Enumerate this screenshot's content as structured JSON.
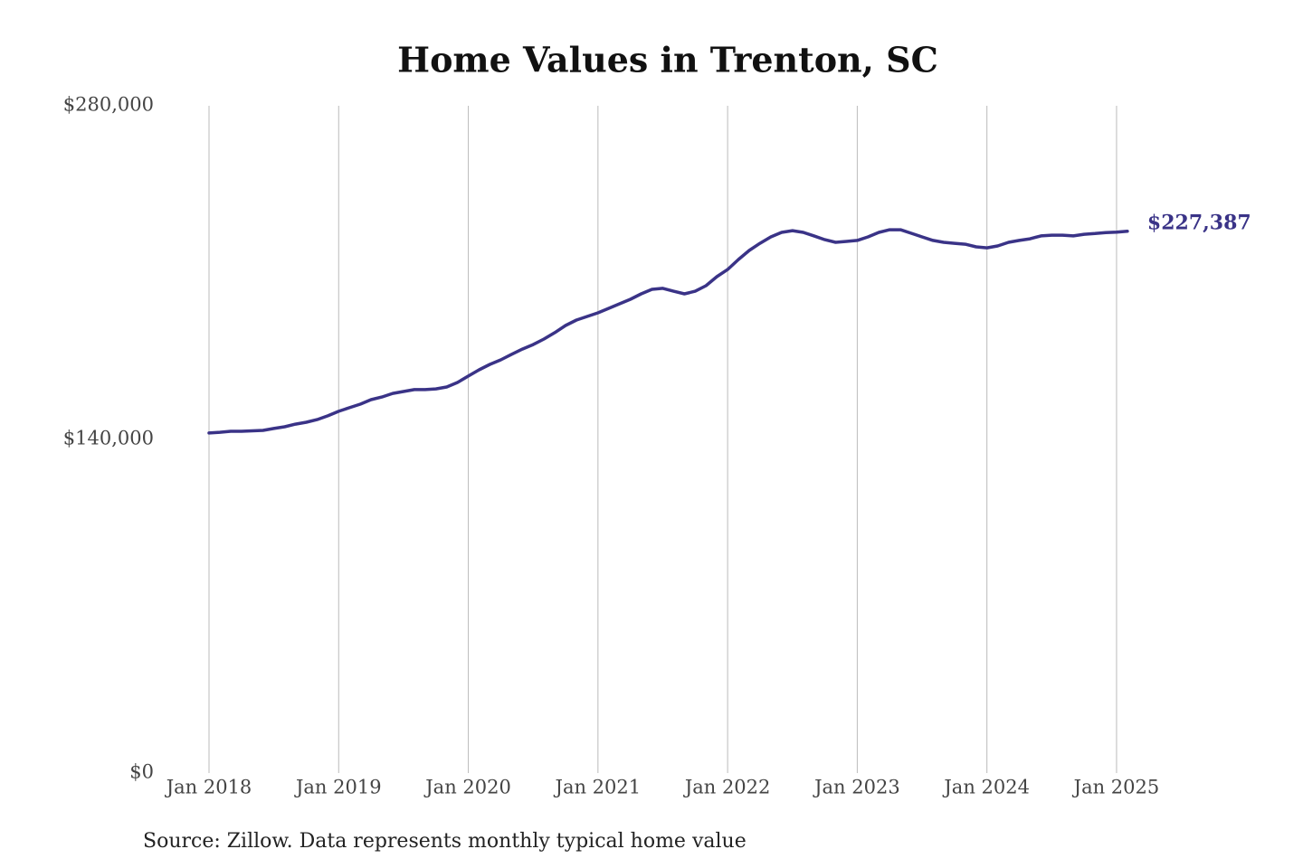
{
  "chart_data": {
    "type": "line",
    "title": "Home Values in Trenton, SC",
    "source": "Source: Zillow. Data represents monthly typical home value",
    "color": "#3a3387",
    "x": [
      "2018-01",
      "2018-02",
      "2018-03",
      "2018-04",
      "2018-05",
      "2018-06",
      "2018-07",
      "2018-08",
      "2018-09",
      "2018-10",
      "2018-11",
      "2018-12",
      "2019-01",
      "2019-02",
      "2019-03",
      "2019-04",
      "2019-05",
      "2019-06",
      "2019-07",
      "2019-08",
      "2019-09",
      "2019-10",
      "2019-11",
      "2019-12",
      "2020-01",
      "2020-02",
      "2020-03",
      "2020-04",
      "2020-05",
      "2020-06",
      "2020-07",
      "2020-08",
      "2020-09",
      "2020-10",
      "2020-11",
      "2020-12",
      "2021-01",
      "2021-02",
      "2021-03",
      "2021-04",
      "2021-05",
      "2021-06",
      "2021-07",
      "2021-08",
      "2021-09",
      "2021-10",
      "2021-11",
      "2021-12",
      "2022-01",
      "2022-02",
      "2022-03",
      "2022-04",
      "2022-05",
      "2022-06",
      "2022-07",
      "2022-08",
      "2022-09",
      "2022-10",
      "2022-11",
      "2022-12",
      "2023-01",
      "2023-02",
      "2023-03",
      "2023-04",
      "2023-05",
      "2023-06",
      "2023-07",
      "2023-08",
      "2023-09",
      "2023-10",
      "2023-11",
      "2023-12",
      "2024-01",
      "2024-02",
      "2024-03",
      "2024-04",
      "2024-05",
      "2024-06",
      "2024-07",
      "2024-08",
      "2024-09",
      "2024-10",
      "2024-11",
      "2024-12",
      "2025-01",
      "2025-02"
    ],
    "values": [
      142700,
      143000,
      143400,
      143400,
      143600,
      143800,
      144600,
      145300,
      146400,
      147200,
      148300,
      149900,
      151800,
      153300,
      154800,
      156700,
      157800,
      159300,
      160100,
      160900,
      160900,
      161200,
      162000,
      163900,
      166600,
      169200,
      171500,
      173400,
      175700,
      177900,
      179800,
      182100,
      184800,
      187800,
      190100,
      191600,
      193100,
      195000,
      196900,
      198800,
      201100,
      203000,
      203400,
      202200,
      201100,
      202200,
      204500,
      208300,
      211300,
      215500,
      219300,
      222300,
      225000,
      226900,
      227600,
      226900,
      225400,
      223800,
      222700,
      223100,
      223500,
      225000,
      226900,
      228000,
      228000,
      226500,
      225000,
      223500,
      222700,
      222300,
      221900,
      220800,
      220400,
      221200,
      222700,
      223500,
      224200,
      225400,
      225700,
      225700,
      225400,
      226100,
      226400,
      226800,
      227000,
      227387
    ],
    "value_labels": [
      null,
      null,
      null,
      null,
      null,
      null,
      null,
      null,
      null,
      null,
      null,
      null,
      null,
      null,
      null,
      null,
      null,
      null,
      null,
      null,
      null,
      null,
      null,
      null,
      null,
      null,
      null,
      null,
      null,
      null,
      null,
      null,
      null,
      null,
      null,
      null,
      null,
      null,
      null,
      null,
      null,
      null,
      null,
      null,
      null,
      null,
      null,
      null,
      null,
      null,
      null,
      null,
      null,
      null,
      null,
      null,
      null,
      null,
      null,
      null,
      null,
      null,
      null,
      null,
      null,
      null,
      null,
      null,
      null,
      null,
      null,
      null,
      null,
      null,
      null,
      null,
      null,
      null,
      null,
      null,
      null,
      null,
      null,
      null,
      null,
      "$227,387"
    ],
    "xticks": [
      {
        "value": "2018-01",
        "label": "Jan 2018"
      },
      {
        "value": "2019-01",
        "label": "Jan 2019"
      },
      {
        "value": "2020-01",
        "label": "Jan 2020"
      },
      {
        "value": "2021-01",
        "label": "Jan 2021"
      },
      {
        "value": "2022-01",
        "label": "Jan 2022"
      },
      {
        "value": "2023-01",
        "label": "Jan 2023"
      },
      {
        "value": "2024-01",
        "label": "Jan 2024"
      },
      {
        "value": "2025-01",
        "label": "Jan 2025"
      }
    ],
    "ylim": [
      0,
      280000
    ],
    "yticks": [
      {
        "value": 0,
        "label": "$0"
      },
      {
        "value": 140000,
        "label": "$140,000"
      },
      {
        "value": 280000,
        "label": "$280,000"
      }
    ],
    "grid": "x"
  }
}
